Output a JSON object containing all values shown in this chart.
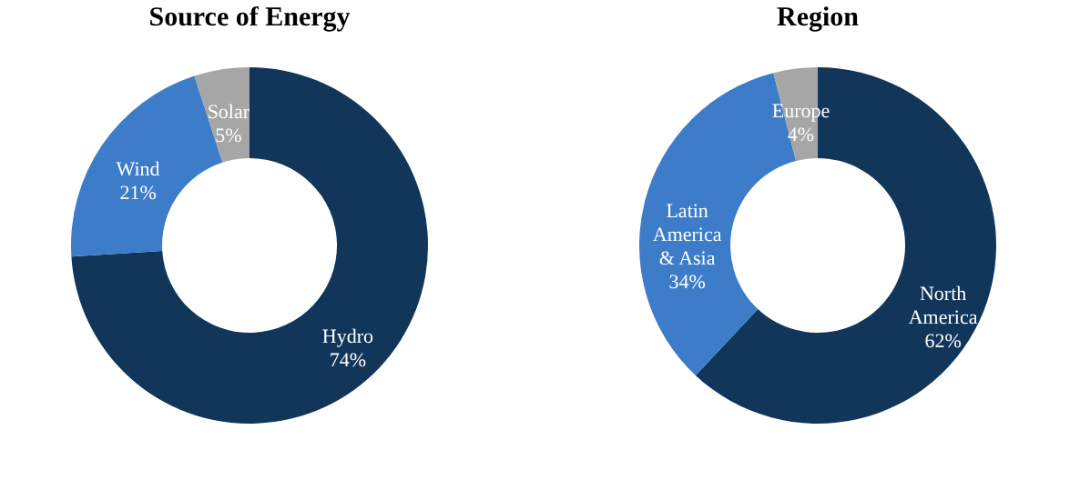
{
  "chart_data": [
    {
      "type": "donut",
      "title": "Source of Energy",
      "categories": [
        "Hydro",
        "Wind",
        "Solar"
      ],
      "values": [
        74,
        21,
        5
      ],
      "colors": [
        "#11365a",
        "#3d7cc9",
        "#a6a6a6"
      ],
      "value_labels": [
        "74%",
        "21%",
        "5%"
      ]
    },
    {
      "type": "donut",
      "title": "Region",
      "categories": [
        "North America",
        "Latin America & Asia",
        "Europe"
      ],
      "values": [
        62,
        34,
        4
      ],
      "colors": [
        "#11365a",
        "#3d7cc9",
        "#a6a6a6"
      ],
      "value_labels": [
        "62%",
        "34%",
        "4%"
      ]
    }
  ]
}
